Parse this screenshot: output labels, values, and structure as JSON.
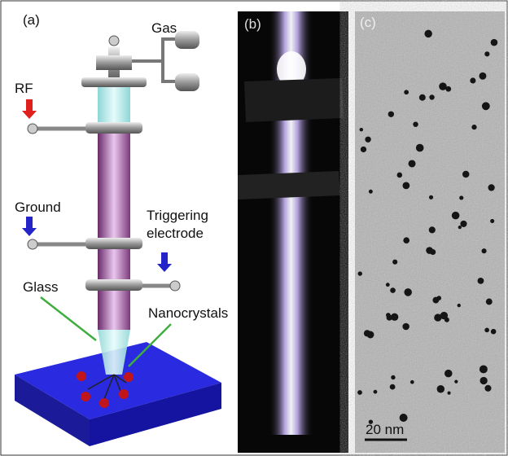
{
  "panels": [
    {
      "label": "(a)",
      "parts": {
        "gas": "Gas",
        "rf": "RF",
        "ground": "Ground",
        "trigger": [
          "Triggering",
          "electrode"
        ],
        "glass": "Glass",
        "nanocrystals": "Nanocrystals"
      }
    },
    {
      "label": "(b)"
    },
    {
      "label": "(c)",
      "scale_bar": "20 nm"
    }
  ]
}
